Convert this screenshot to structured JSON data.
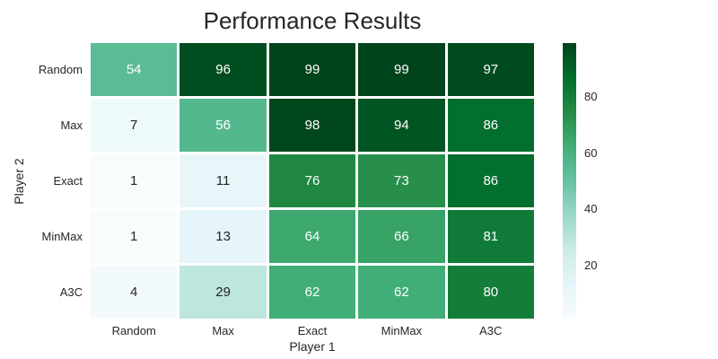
{
  "chart_data": {
    "type": "heatmap",
    "title": "Performance Results",
    "xlabel": "Player 1",
    "ylabel": "Player 2",
    "x_categories": [
      "Random",
      "Max",
      "Exact",
      "MinMax",
      "A3C"
    ],
    "y_categories": [
      "Random",
      "Max",
      "Exact",
      "MinMax",
      "A3C"
    ],
    "values": [
      [
        54,
        96,
        99,
        99,
        97
      ],
      [
        7,
        56,
        98,
        94,
        86
      ],
      [
        1,
        11,
        76,
        73,
        86
      ],
      [
        1,
        13,
        64,
        66,
        81
      ],
      [
        4,
        29,
        62,
        62,
        80
      ]
    ],
    "vmin": 1,
    "vmax": 99,
    "colormap_name": "BuGn",
    "colormap_anchors_top_to_bottom": [
      "#00441b",
      "#006d2c",
      "#238b45",
      "#41ae76",
      "#66c2a4",
      "#99d8c9",
      "#ccece6",
      "#e5f5f9",
      "#f7fcfd"
    ],
    "cell_colors": [
      [
        "#5abb95",
        "#004e1f",
        "#00441b",
        "#00441b",
        "#004b1e"
      ],
      [
        "#eef9fb",
        "#54b88e",
        "#00471c",
        "#005522",
        "#026f2e"
      ],
      [
        "#f7fcfd",
        "#e8f6fa",
        "#1f8742",
        "#278f4b",
        "#026f2e"
      ],
      [
        "#f7fcfd",
        "#e5f5f9",
        "#3da96f",
        "#38a367",
        "#107b38"
      ],
      [
        "#f3fafc",
        "#bde6de",
        "#42ae77",
        "#42ae77",
        "#137e3a"
      ]
    ],
    "cell_text_colors": [
      [
        "#ffffff",
        "#ffffff",
        "#ffffff",
        "#ffffff",
        "#ffffff"
      ],
      [
        "#262626",
        "#ffffff",
        "#ffffff",
        "#ffffff",
        "#ffffff"
      ],
      [
        "#262626",
        "#262626",
        "#ffffff",
        "#ffffff",
        "#ffffff"
      ],
      [
        "#262626",
        "#262626",
        "#ffffff",
        "#ffffff",
        "#ffffff"
      ],
      [
        "#262626",
        "#262626",
        "#ffffff",
        "#ffffff",
        "#ffffff"
      ]
    ],
    "colorbar_ticks": [
      80,
      60,
      40,
      20
    ],
    "grid_line_color": "#ffffff",
    "text_color": "#262626",
    "legend_position": "right-colorbar",
    "grid": "off"
  }
}
